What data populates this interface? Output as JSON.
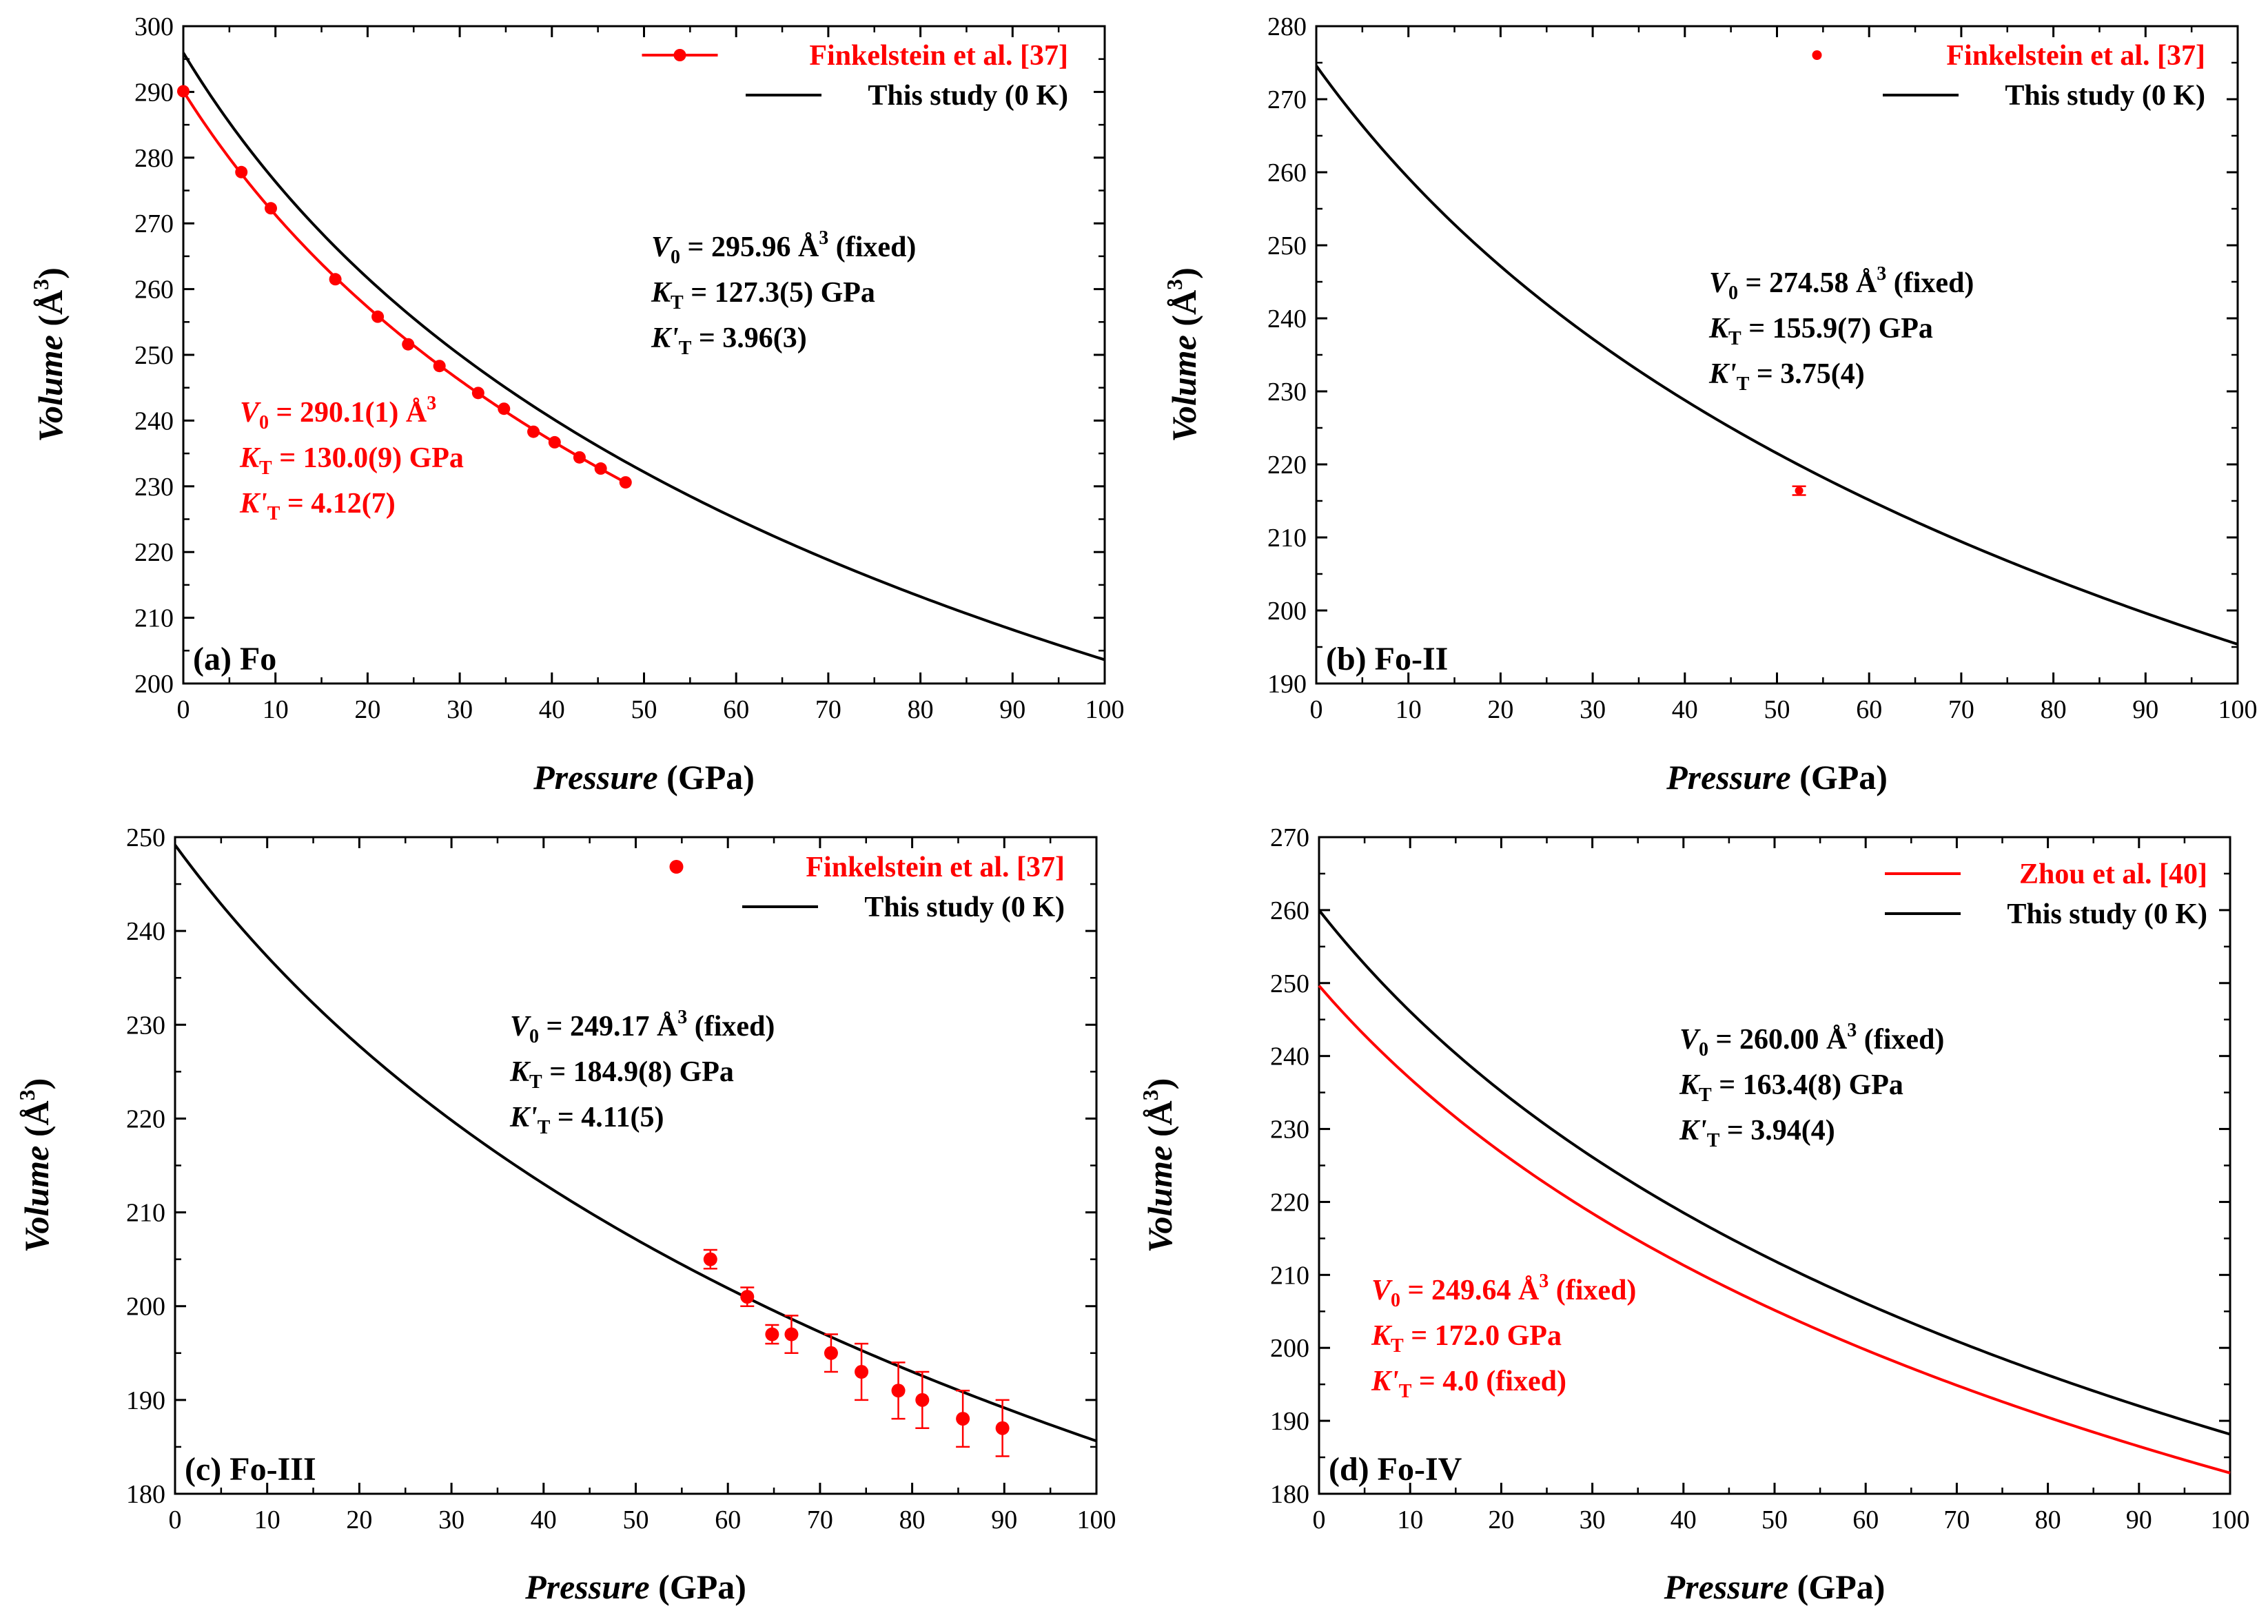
{
  "colors": {
    "red": "#ff0000",
    "black": "#000000"
  },
  "common": {
    "xlabel_italic": "Pressure",
    "xlabel_unit": " (GPa)",
    "ylabel_italic": "Volume",
    "ylabel_unit_open": " (Å",
    "ylabel_unit_sup": "3",
    "ylabel_unit_close": ")",
    "ann_fixed": " (fixed)",
    "ann_A3": " Å",
    "ann_sup3": "3",
    "ann_V": "V",
    "ann_V_sub": "0",
    "ann_K": "K",
    "ann_K_sub": "T",
    "ann_Kp": "K'",
    "ann_Kp_sub": "T",
    "ann_GPa": " GPa"
  },
  "chart_data": [
    {
      "type": "line",
      "panel_label": "(a) Fo",
      "xlim": [
        0,
        100
      ],
      "ylim": [
        200,
        300
      ],
      "xticks": [
        "0",
        "10",
        "20",
        "30",
        "40",
        "50",
        "60",
        "70",
        "80",
        "90",
        "100"
      ],
      "yticks": [
        "200",
        "210",
        "220",
        "230",
        "240",
        "250",
        "260",
        "270",
        "280",
        "290",
        "300"
      ],
      "xlabel": "Pressure (GPa)",
      "ylabel": "Volume (Å3)",
      "legend": [
        "Finkelstein et al. [37]",
        "This study (0 K)"
      ],
      "legend_position": "top-right",
      "series": [
        {
          "name": "This study (0 K)",
          "kind": "bm3",
          "V0": 295.96,
          "K": 127.3,
          "Kp": 3.96,
          "xmax": 100,
          "color": "black"
        },
        {
          "name": "Finkelstein et al. [37] fit",
          "kind": "bm3",
          "V0": 290.1,
          "K": 130.0,
          "Kp": 4.12,
          "xmax": 48,
          "color": "red"
        },
        {
          "name": "Finkelstein et al. [37]",
          "kind": "points",
          "color": "red",
          "x": [
            0,
            6.3,
            9.5,
            16.5,
            21.1,
            24.4,
            27.8,
            32.0,
            34.8,
            38.0,
            40.3,
            43.0,
            45.3,
            48.0
          ],
          "y": [
            290.1,
            277.8,
            272.3,
            261.5,
            255.8,
            251.6,
            248.3,
            244.2,
            241.8,
            238.3,
            236.7,
            234.4,
            232.7,
            230.6
          ]
        }
      ],
      "annotations": {
        "black": {
          "V0": "295.96",
          "K": "127.3(5)",
          "Kp": "3.96(3)",
          "V_prefix": " = ",
          "K_prefix": " = ",
          "Kp_prefix": " = ",
          "fixed": true
        },
        "red": {
          "V0": "290.1(1)",
          "K": "130.0(9)",
          "Kp": "4.12(7)",
          "V_prefix": " = ",
          "K_prefix": " = ",
          "Kp_prefix": " = ",
          "fixed": false
        }
      }
    },
    {
      "type": "line",
      "panel_label": "(b) Fo-II",
      "xlim": [
        0,
        100
      ],
      "ylim": [
        190,
        280
      ],
      "xticks": [
        "0",
        "10",
        "20",
        "30",
        "40",
        "50",
        "60",
        "70",
        "80",
        "90",
        "100"
      ],
      "yticks": [
        "190",
        "200",
        "210",
        "220",
        "230",
        "240",
        "250",
        "260",
        "270",
        "280"
      ],
      "xlabel": "Pressure (GPa)",
      "ylabel": "Volume (Å3)",
      "legend": [
        "Finkelstein et al. [37]",
        "This study (0 K)"
      ],
      "legend_position": "top-right",
      "series": [
        {
          "name": "This study (0 K)",
          "kind": "bm3",
          "V0": 274.58,
          "K": 155.9,
          "Kp": 3.75,
          "xmax": 100,
          "color": "black"
        },
        {
          "name": "Finkelstein et al. [37]",
          "kind": "points",
          "color": "red",
          "x": [
            52.4
          ],
          "y": [
            216.4
          ],
          "err": [
            0.6
          ]
        }
      ],
      "annotations": {
        "black": {
          "V0": "274.58",
          "K": "155.9(7)",
          "Kp": "3.75(4)",
          "V_prefix": " =  ",
          "K_prefix": " =  ",
          "Kp_prefix": " = ",
          "fixed": true
        }
      }
    },
    {
      "type": "line",
      "panel_label": "(c) Fo-III",
      "xlim": [
        0,
        100
      ],
      "ylim": [
        180,
        250
      ],
      "xticks": [
        "0",
        "10",
        "20",
        "30",
        "40",
        "50",
        "60",
        "70",
        "80",
        "90",
        "100"
      ],
      "yticks": [
        "180",
        "190",
        "200",
        "210",
        "220",
        "230",
        "240",
        "250"
      ],
      "xlabel": "Pressure (GPa)",
      "ylabel": "Volume (Å3)",
      "legend": [
        "Finkelstein et al. [37]",
        "This study (0 K)"
      ],
      "legend_position": "top-right",
      "series": [
        {
          "name": "This study (0 K)",
          "kind": "bm3",
          "V0": 249.17,
          "K": 184.9,
          "Kp": 4.11,
          "xmax": 100,
          "color": "black"
        },
        {
          "name": "Finkelstein et al. [37]",
          "kind": "points",
          "color": "red",
          "x": [
            58.1,
            62.1,
            64.8,
            66.9,
            71.2,
            74.5,
            78.5,
            81.1,
            85.5,
            89.8
          ],
          "y": [
            205,
            201,
            197,
            197,
            195,
            193,
            191,
            190,
            188,
            187
          ],
          "err": [
            1.0,
            1.0,
            1.0,
            2.0,
            2.0,
            3.0,
            3.0,
            3.0,
            3.0,
            3.0
          ]
        }
      ],
      "annotations": {
        "black": {
          "V0": "249.17",
          "K": "184.9(8)",
          "Kp": "4.11(5)",
          "V_prefix": " = ",
          "K_prefix": " = ",
          "Kp_prefix": " = ",
          "fixed": true
        }
      }
    },
    {
      "type": "line",
      "panel_label": "(d) Fo-IV",
      "xlim": [
        0,
        100
      ],
      "ylim": [
        180,
        270
      ],
      "xticks": [
        "0",
        "10",
        "20",
        "30",
        "40",
        "50",
        "60",
        "70",
        "80",
        "90",
        "100"
      ],
      "yticks": [
        "180",
        "190",
        "200",
        "210",
        "220",
        "230",
        "240",
        "250",
        "260",
        "270"
      ],
      "xlabel": "Pressure (GPa)",
      "ylabel": "Volume (Å3)",
      "legend": [
        "Zhou et al. [40]",
        "This study (0 K)"
      ],
      "legend_position": "top-right",
      "series": [
        {
          "name": "This study (0 K)",
          "kind": "bm3",
          "V0": 260.0,
          "K": 163.4,
          "Kp": 3.94,
          "xmax": 100,
          "color": "black"
        },
        {
          "name": "Zhou et al. [40]",
          "kind": "bm3",
          "V0": 249.64,
          "K": 172.0,
          "Kp": 4.0,
          "xmax": 100,
          "color": "red"
        }
      ],
      "annotations": {
        "black": {
          "V0": "260.00",
          "K": "163.4(8)",
          "Kp": "3.94(4)",
          "V_prefix": " = ",
          "K_prefix": " = ",
          "Kp_prefix": " = ",
          "fixed": true
        },
        "red": {
          "V0": "249.64",
          "K": "172.0",
          "Kp": "4.0 (fixed)",
          "V_prefix": " = ",
          "K_prefix": " = ",
          "Kp_prefix": " = ",
          "fixed": true
        }
      }
    }
  ]
}
